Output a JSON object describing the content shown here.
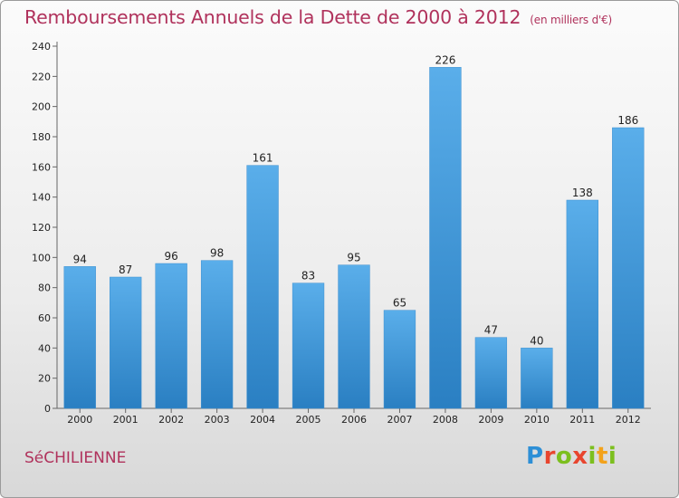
{
  "chart_data": {
    "type": "bar",
    "title": "Remboursements Annuels de la Dette de 2000 à 2012",
    "subtitle": "(en milliers d'€)",
    "categories": [
      "2000",
      "2001",
      "2002",
      "2003",
      "2004",
      "2005",
      "2006",
      "2007",
      "2008",
      "2009",
      "2010",
      "2011",
      "2012"
    ],
    "values": [
      94,
      87,
      96,
      98,
      161,
      83,
      95,
      65,
      226,
      47,
      40,
      138,
      186
    ],
    "ylim": [
      0,
      240
    ],
    "yticks": [
      0,
      20,
      40,
      60,
      80,
      100,
      120,
      140,
      160,
      180,
      200,
      220,
      240
    ],
    "xlabel": "",
    "ylabel": "",
    "grid": false,
    "bar_color_top": "#5aaeea",
    "bar_color_bottom": "#2a7fc2"
  },
  "footer": {
    "commune": "SéCHILIENNE",
    "brand": "Proxiti"
  }
}
